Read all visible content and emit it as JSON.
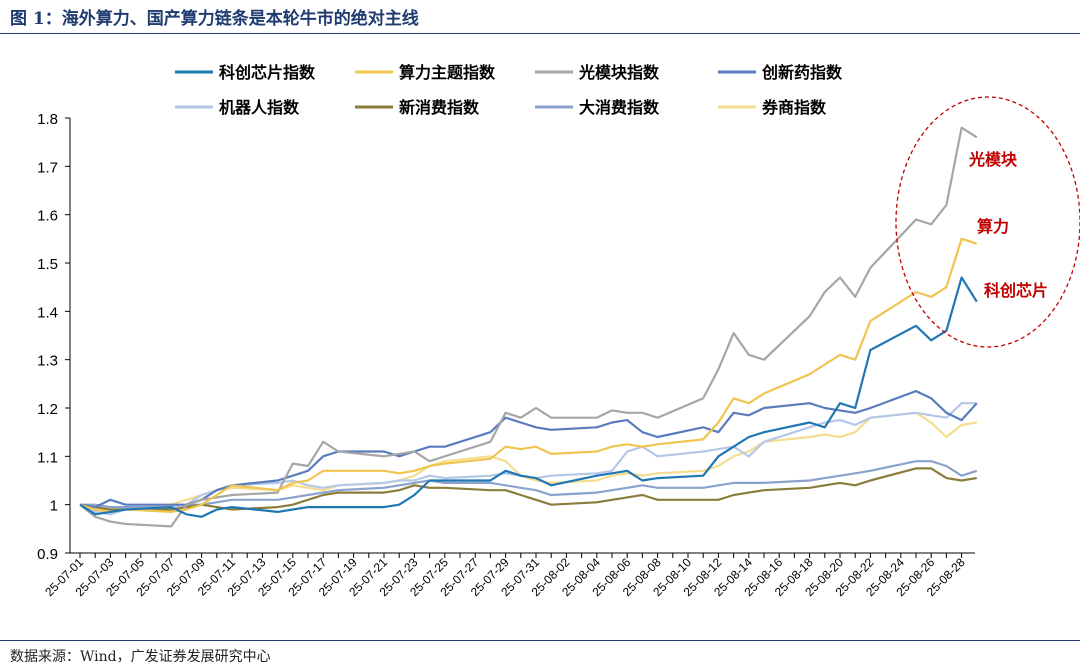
{
  "figure_title": "图 1：海外算力、国产算力链条是本轮牛市的绝对主线",
  "source_note": "数据来源：Wind，广发证券发展研究中心",
  "chart_data": {
    "type": "line",
    "title": "",
    "xlabel": "",
    "ylabel": "",
    "ylim": [
      0.9,
      1.8
    ],
    "yticks": [
      0.9,
      1,
      1.1,
      1.2,
      1.3,
      1.4,
      1.5,
      1.6,
      1.7,
      1.8
    ],
    "ytick_labels": [
      "0.9",
      "1",
      "1.1",
      "1.2",
      "1.3",
      "1.4",
      "1.5",
      "1.6",
      "1.7",
      "1.8"
    ],
    "legend_position": "top",
    "grid": false,
    "x_tick_labels": [
      "25-07-01",
      "25-07-03",
      "25-07-05",
      "25-07-07",
      "25-07-09",
      "25-07-11",
      "25-07-13",
      "25-07-15",
      "25-07-17",
      "25-07-19",
      "25-07-21",
      "25-07-23",
      "25-07-25",
      "25-07-27",
      "25-07-29",
      "25-07-31",
      "25-08-02",
      "25-08-04",
      "25-08-06",
      "25-08-08",
      "25-08-10",
      "25-08-12",
      "25-08-14",
      "25-08-16",
      "25-08-18",
      "25-08-20",
      "25-08-22",
      "25-08-24",
      "25-08-26",
      "25-08-28"
    ],
    "x": [
      "2025-07-01",
      "2025-07-02",
      "2025-07-03",
      "2025-07-04",
      "2025-07-07",
      "2025-07-08",
      "2025-07-09",
      "2025-07-10",
      "2025-07-11",
      "2025-07-14",
      "2025-07-15",
      "2025-07-16",
      "2025-07-17",
      "2025-07-18",
      "2025-07-21",
      "2025-07-22",
      "2025-07-23",
      "2025-07-24",
      "2025-07-25",
      "2025-07-28",
      "2025-07-29",
      "2025-07-30",
      "2025-07-31",
      "2025-08-01",
      "2025-08-04",
      "2025-08-05",
      "2025-08-06",
      "2025-08-07",
      "2025-08-08",
      "2025-08-11",
      "2025-08-12",
      "2025-08-13",
      "2025-08-14",
      "2025-08-15",
      "2025-08-18",
      "2025-08-19",
      "2025-08-20",
      "2025-08-21",
      "2025-08-22",
      "2025-08-25",
      "2025-08-26",
      "2025-08-27",
      "2025-08-28",
      "2025-08-29"
    ],
    "series": [
      {
        "name": "科创芯片指数",
        "color": "#1f77b4",
        "width": 2.2,
        "values": [
          1.0,
          0.98,
          0.985,
          0.99,
          0.995,
          0.98,
          0.975,
          0.99,
          0.995,
          0.985,
          0.99,
          0.995,
          0.995,
          0.995,
          0.995,
          1.0,
          1.02,
          1.05,
          1.05,
          1.05,
          1.07,
          1.06,
          1.055,
          1.04,
          1.06,
          1.065,
          1.07,
          1.05,
          1.055,
          1.06,
          1.1,
          1.12,
          1.14,
          1.15,
          1.17,
          1.16,
          1.21,
          1.2,
          1.32,
          1.37,
          1.34,
          1.36,
          1.47,
          1.42
        ]
      },
      {
        "name": "算力主题指数",
        "color": "#f0c54f",
        "width": 2.2,
        "values": [
          1.0,
          0.99,
          0.985,
          0.99,
          0.985,
          0.99,
          1.0,
          1.02,
          1.04,
          1.03,
          1.045,
          1.05,
          1.07,
          1.07,
          1.07,
          1.065,
          1.07,
          1.08,
          1.085,
          1.095,
          1.12,
          1.115,
          1.12,
          1.105,
          1.11,
          1.12,
          1.125,
          1.12,
          1.125,
          1.135,
          1.17,
          1.22,
          1.21,
          1.23,
          1.27,
          1.29,
          1.31,
          1.3,
          1.38,
          1.44,
          1.43,
          1.45,
          1.55,
          1.54
        ]
      },
      {
        "name": "光模块指数",
        "color": "#a6a6a6",
        "width": 2.2,
        "values": [
          1.0,
          0.975,
          0.965,
          0.96,
          0.955,
          1.0,
          1.01,
          1.015,
          1.02,
          1.025,
          1.085,
          1.08,
          1.13,
          1.11,
          1.1,
          1.105,
          1.11,
          1.09,
          1.1,
          1.13,
          1.19,
          1.18,
          1.2,
          1.18,
          1.18,
          1.195,
          1.19,
          1.19,
          1.18,
          1.22,
          1.28,
          1.355,
          1.31,
          1.3,
          1.39,
          1.44,
          1.47,
          1.43,
          1.49,
          1.59,
          1.58,
          1.62,
          1.78,
          1.76
        ]
      },
      {
        "name": "创新药指数",
        "color": "#5a7bbd",
        "width": 2.2,
        "values": [
          1.0,
          0.995,
          1.01,
          1.0,
          1.0,
          1.0,
          1.01,
          1.03,
          1.04,
          1.05,
          1.06,
          1.07,
          1.1,
          1.11,
          1.11,
          1.1,
          1.11,
          1.12,
          1.12,
          1.15,
          1.18,
          1.17,
          1.16,
          1.155,
          1.16,
          1.17,
          1.175,
          1.15,
          1.14,
          1.16,
          1.15,
          1.19,
          1.185,
          1.2,
          1.21,
          1.2,
          1.195,
          1.19,
          1.2,
          1.235,
          1.22,
          1.19,
          1.175,
          1.21
        ]
      },
      {
        "name": "机器人指数",
        "color": "#b4c7e7",
        "width": 2.2,
        "values": [
          1.0,
          0.985,
          0.98,
          0.99,
          0.995,
          1.0,
          1.02,
          1.03,
          1.04,
          1.045,
          1.05,
          1.04,
          1.035,
          1.04,
          1.045,
          1.05,
          1.05,
          1.06,
          1.055,
          1.06,
          1.065,
          1.06,
          1.055,
          1.06,
          1.065,
          1.07,
          1.11,
          1.12,
          1.1,
          1.11,
          1.115,
          1.12,
          1.1,
          1.13,
          1.16,
          1.17,
          1.175,
          1.165,
          1.18,
          1.19,
          1.185,
          1.18,
          1.21,
          1.21
        ]
      },
      {
        "name": "新消费指数",
        "color": "#8a7d3c",
        "width": 2.2,
        "values": [
          1.0,
          0.995,
          0.99,
          0.99,
          0.99,
          0.995,
          1.0,
          0.995,
          0.99,
          0.995,
          1.0,
          1.01,
          1.02,
          1.025,
          1.025,
          1.03,
          1.04,
          1.035,
          1.035,
          1.03,
          1.03,
          1.02,
          1.01,
          1.0,
          1.005,
          1.01,
          1.015,
          1.02,
          1.01,
          1.01,
          1.01,
          1.02,
          1.025,
          1.03,
          1.035,
          1.04,
          1.045,
          1.04,
          1.05,
          1.075,
          1.075,
          1.055,
          1.05,
          1.055
        ]
      },
      {
        "name": "大消费指数",
        "color": "#8aa2cc",
        "width": 2.2,
        "values": [
          1.0,
          1.0,
          0.995,
          0.995,
          0.995,
          1.0,
          1.0,
          1.005,
          1.01,
          1.01,
          1.015,
          1.02,
          1.025,
          1.03,
          1.035,
          1.04,
          1.045,
          1.05,
          1.045,
          1.045,
          1.04,
          1.035,
          1.03,
          1.02,
          1.025,
          1.03,
          1.035,
          1.04,
          1.035,
          1.035,
          1.04,
          1.045,
          1.045,
          1.045,
          1.05,
          1.055,
          1.06,
          1.065,
          1.07,
          1.09,
          1.09,
          1.08,
          1.06,
          1.07
        ]
      },
      {
        "name": "券商指数",
        "color": "#f4dd8e",
        "width": 2.2,
        "values": [
          1.0,
          0.99,
          0.985,
          0.99,
          1.0,
          1.01,
          1.02,
          1.03,
          1.035,
          1.03,
          1.04,
          1.035,
          1.03,
          1.04,
          1.045,
          1.05,
          1.06,
          1.08,
          1.09,
          1.1,
          1.09,
          1.06,
          1.05,
          1.045,
          1.05,
          1.06,
          1.065,
          1.06,
          1.065,
          1.07,
          1.08,
          1.1,
          1.11,
          1.13,
          1.14,
          1.145,
          1.14,
          1.15,
          1.18,
          1.19,
          1.17,
          1.14,
          1.165,
          1.17
        ]
      }
    ],
    "annotations": [
      {
        "text": "光模块",
        "color": "#c00000"
      },
      {
        "text": "算力",
        "color": "#c00000"
      },
      {
        "text": "科创芯片",
        "color": "#c00000"
      }
    ]
  }
}
